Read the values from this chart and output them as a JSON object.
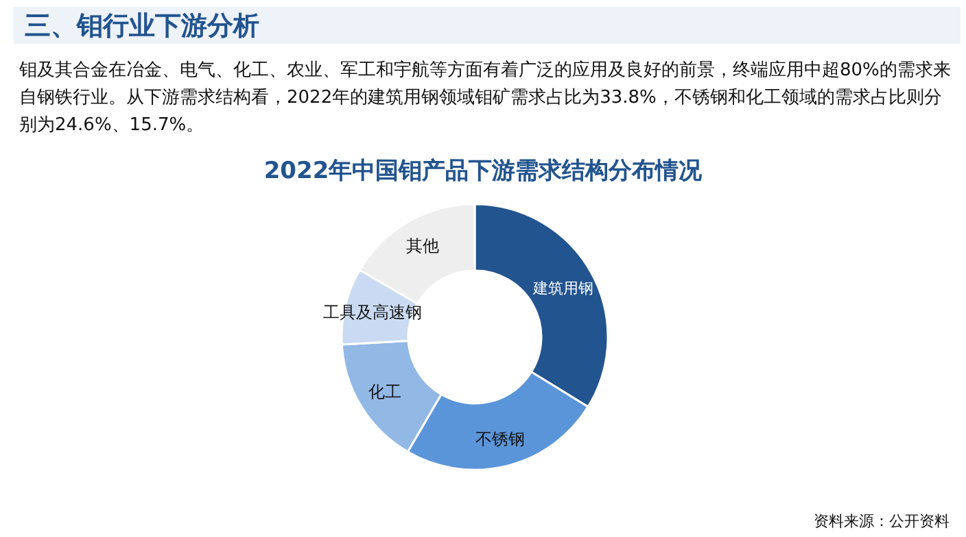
{
  "chart_data": {
    "type": "donut",
    "title": "2022年中国钼产品下游需求结构分布情况",
    "subtitle": "三、钼行业下游分析",
    "annotations": [
      "钼及其合金在冶金、电气、化工、农业、军工和宇航等方面有着广泛的应用及良好的前景，终端应用中超80%的需求来自钢铁行业。从下游需求结构看，2022年的建筑用钢领域钼矿需求占比为33.8%，不锈钢和化工领域的需求占比则分别为24.6%、15.7%。",
      "资料来源：公开资料"
    ],
    "categories": [
      "建筑用钢",
      "不锈钢",
      "化工",
      "工具及高速钢",
      "其他"
    ],
    "values": [
      33.8,
      24.6,
      15.7,
      9.3,
      16.6
    ],
    "colors": [
      "#22548f",
      "#5b95d9",
      "#92b8e6",
      "#c9daf2",
      "#eeeeee"
    ],
    "legend": false
  }
}
